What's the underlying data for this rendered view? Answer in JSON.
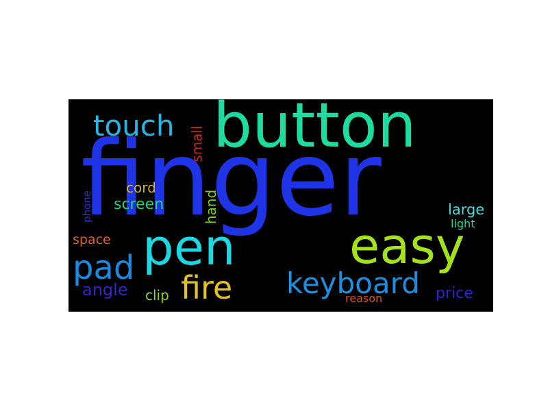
{
  "words": {
    "finger": {
      "text": "finger",
      "color": "#1f34e6"
    },
    "button": {
      "text": "button",
      "color": "#1ddca0"
    },
    "pen": {
      "text": "pen",
      "color": "#1cd8e2"
    },
    "easy": {
      "text": "easy",
      "color": "#a4e21a"
    },
    "pad": {
      "text": "pad",
      "color": "#1a8be3"
    },
    "keyboard": {
      "text": "keyboard",
      "color": "#1b8fe0"
    },
    "touch": {
      "text": "touch",
      "color": "#27b5e6"
    },
    "fire": {
      "text": "fire",
      "color": "#e6c21c"
    },
    "angle": {
      "text": "angle",
      "color": "#3a21c8"
    },
    "screen": {
      "text": "screen",
      "color": "#21d07a"
    },
    "cord": {
      "text": "cord",
      "color": "#d0b418"
    },
    "small": {
      "text": "small",
      "color": "#c8291f"
    },
    "hand": {
      "text": "hand",
      "color": "#7fd01c"
    },
    "large": {
      "text": "large",
      "color": "#47dde0"
    },
    "light": {
      "text": "light",
      "color": "#1ed99a"
    },
    "space": {
      "text": "space",
      "color": "#d8611a"
    },
    "phone": {
      "text": "phone",
      "color": "#2a2ec8"
    },
    "clip": {
      "text": "clip",
      "color": "#8ad61c"
    },
    "price": {
      "text": "price",
      "color": "#2a25d2"
    },
    "reason": {
      "text": "reason",
      "color": "#d8531a"
    }
  }
}
